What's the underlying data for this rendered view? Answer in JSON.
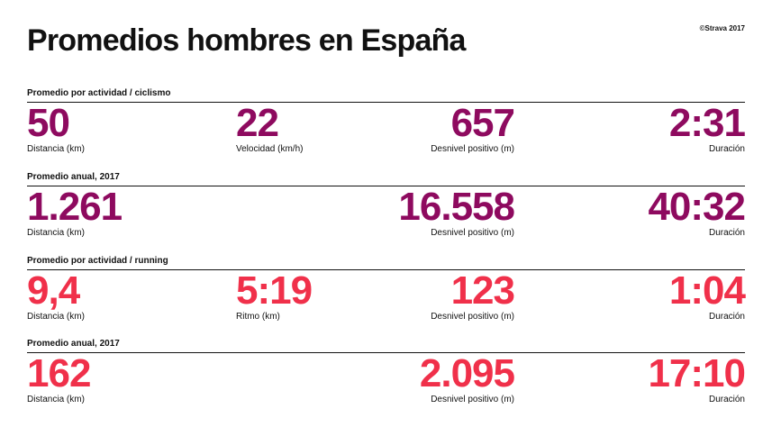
{
  "title": "Promedios hombres en España",
  "copyright": "©Strava 2017",
  "colors": {
    "cycling": "#8e0a5f",
    "running": "#f0304a",
    "text": "#111111"
  },
  "sections": [
    {
      "label": "Promedio por actividad / ciclismo",
      "stats": [
        {
          "value": "50",
          "caption": "Distancia (km)"
        },
        {
          "value": "22",
          "caption": "Velocidad (km/h)"
        },
        {
          "value": "657",
          "caption": "Desnivel positivo (m)"
        },
        {
          "value": "2:31",
          "caption": "Duración"
        }
      ]
    },
    {
      "label": "Promedio anual, 2017",
      "stats": [
        {
          "value": "1.261",
          "caption": "Distancia (km)"
        },
        {
          "value": "16.558",
          "caption": "Desnivel positivo (m)"
        },
        {
          "value": "40:32",
          "caption": "Duración"
        }
      ]
    },
    {
      "label": "Promedio por actividad / running",
      "stats": [
        {
          "value": "9,4",
          "caption": "Distancia (km)"
        },
        {
          "value": "5:19",
          "caption": "Ritmo (km)"
        },
        {
          "value": "123",
          "caption": "Desnivel positivo (m)"
        },
        {
          "value": "1:04",
          "caption": "Duración"
        }
      ]
    },
    {
      "label": "Promedio anual, 2017",
      "stats": [
        {
          "value": "162",
          "caption": "Distancia (km)"
        },
        {
          "value": "2.095",
          "caption": "Desnivel positivo (m)"
        },
        {
          "value": "17:10",
          "caption": "Duración"
        }
      ]
    }
  ]
}
